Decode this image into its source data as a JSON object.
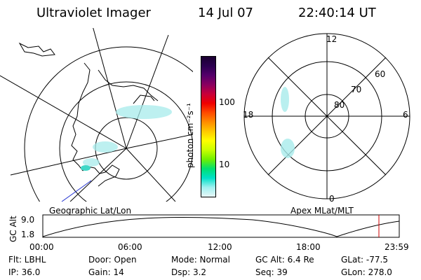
{
  "header": {
    "instrument": "Ultraviolet Imager",
    "date": "14 Jul 07",
    "time": "22:40:14 UT"
  },
  "left_map": {
    "label": "Geographic Lat/Lon"
  },
  "right_map": {
    "label": "Apex MLat/MLT",
    "mlt_labels": {
      "top": "12",
      "left": "18",
      "right": "6",
      "bottom": "0"
    },
    "lat_labels": [
      "80",
      "70",
      "60"
    ]
  },
  "colorbar": {
    "unit_label": "photon cm⁻²s⁻¹",
    "tick_100": "100",
    "tick_10": "10",
    "colors": [
      "#1a0030",
      "#2b0050",
      "#55006a",
      "#8a0060",
      "#c8003a",
      "#f00000",
      "#ff4a00",
      "#ff8c00",
      "#ffc800",
      "#ffff00",
      "#c8ff00",
      "#70f000",
      "#00e070",
      "#00e0c8",
      "#a0f0f0",
      "#e8f8f8"
    ]
  },
  "timeline": {
    "axis_label": "GC Alt",
    "y_top": "9.0",
    "y_bottom": "1.8",
    "x_labels": [
      "00:00",
      "06:00",
      "12:00",
      "18:00",
      "23:59"
    ],
    "marker_color": "#cc0000"
  },
  "info": {
    "filter_label": "Flt: LBHL",
    "ip_label": "IP: 36.0",
    "door_label": "Door: Open",
    "gain_label": "Gain: 14",
    "mode_label": "Mode: Normal",
    "dsp_label": "Dsp:     3.2",
    "gcalt_label": "GC Alt: 6.4 Re",
    "seq_label": "Seq: 39",
    "glat_label": "GLat: -77.5",
    "glon_label": "GLon: 278.0"
  }
}
